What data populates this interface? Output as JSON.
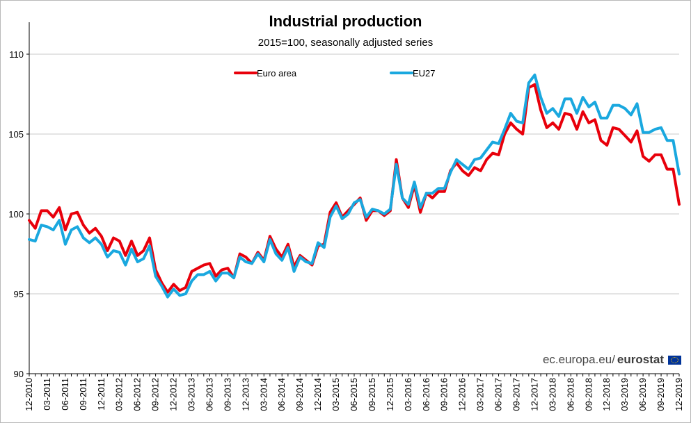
{
  "chart_data": {
    "type": "line",
    "title": "Industrial production",
    "subtitle": "2015=100, seasonally adjusted series",
    "xlabel": "",
    "ylabel": "",
    "ylim": [
      90,
      110
    ],
    "yticks": [
      "90",
      "95",
      "100",
      "105",
      "110"
    ],
    "grid": true,
    "legend_position": "top-center",
    "categories": [
      "12-2010",
      "01-2011",
      "02-2011",
      "03-2011",
      "04-2011",
      "05-2011",
      "06-2011",
      "07-2011",
      "08-2011",
      "09-2011",
      "10-2011",
      "11-2011",
      "12-2011",
      "01-2012",
      "02-2012",
      "03-2012",
      "04-2012",
      "05-2012",
      "06-2012",
      "07-2012",
      "08-2012",
      "09-2012",
      "10-2012",
      "11-2012",
      "12-2012",
      "01-2013",
      "02-2013",
      "03-2013",
      "04-2013",
      "05-2013",
      "06-2013",
      "07-2013",
      "08-2013",
      "09-2013",
      "10-2013",
      "11-2013",
      "12-2013",
      "01-2014",
      "02-2014",
      "03-2014",
      "04-2014",
      "05-2014",
      "06-2014",
      "07-2014",
      "08-2014",
      "09-2014",
      "10-2014",
      "11-2014",
      "12-2014",
      "01-2015",
      "02-2015",
      "03-2015",
      "04-2015",
      "05-2015",
      "06-2015",
      "07-2015",
      "08-2015",
      "09-2015",
      "10-2015",
      "11-2015",
      "12-2015",
      "01-2016",
      "02-2016",
      "03-2016",
      "04-2016",
      "05-2016",
      "06-2016",
      "07-2016",
      "08-2016",
      "09-2016",
      "10-2016",
      "11-2016",
      "12-2016",
      "01-2017",
      "02-2017",
      "03-2017",
      "04-2017",
      "05-2017",
      "06-2017",
      "07-2017",
      "08-2017",
      "09-2017",
      "10-2017",
      "11-2017",
      "12-2017",
      "01-2018",
      "02-2018",
      "03-2018",
      "04-2018",
      "05-2018",
      "06-2018",
      "07-2018",
      "08-2018",
      "09-2018",
      "10-2018",
      "11-2018",
      "12-2018",
      "01-2019",
      "02-2019",
      "03-2019",
      "04-2019",
      "05-2019",
      "06-2019",
      "07-2019",
      "08-2019",
      "09-2019",
      "10-2019",
      "11-2019",
      "12-2019"
    ],
    "xtick_labels": [
      "12-2010",
      "03-2011",
      "06-2011",
      "09-2011",
      "12-2011",
      "03-2012",
      "06-2012",
      "09-2012",
      "12-2012",
      "03-2013",
      "06-2013",
      "09-2013",
      "12-2013",
      "03-2014",
      "06-2014",
      "09-2014",
      "12-2014",
      "03-2015",
      "06-2015",
      "09-2015",
      "12-2015",
      "03-2016",
      "06-2016",
      "09-2016",
      "12-2016",
      "03-2017",
      "06-2017",
      "09-2017",
      "12-2017",
      "03-2018",
      "06-2018",
      "09-2018",
      "12-2018",
      "03-2019",
      "06-2019",
      "09-2019",
      "12-2019"
    ],
    "series": [
      {
        "name": "Euro area",
        "color": "#e8000b",
        "values": [
          99.6,
          99.1,
          100.2,
          100.2,
          99.8,
          100.4,
          99.0,
          100.0,
          100.1,
          99.3,
          98.8,
          99.1,
          98.6,
          97.7,
          98.5,
          98.3,
          97.4,
          98.3,
          97.4,
          97.7,
          98.5,
          96.5,
          95.7,
          95.1,
          95.6,
          95.2,
          95.4,
          96.4,
          96.6,
          96.8,
          96.9,
          96.1,
          96.5,
          96.6,
          96.0,
          97.5,
          97.3,
          96.9,
          97.6,
          97.1,
          98.6,
          97.8,
          97.3,
          98.1,
          96.7,
          97.4,
          97.1,
          96.8,
          98.0,
          98.1,
          100.1,
          100.7,
          99.8,
          100.2,
          100.6,
          101.0,
          99.6,
          100.2,
          100.2,
          99.9,
          100.2,
          103.4,
          101.0,
          100.4,
          101.8,
          100.1,
          101.3,
          101.0,
          101.4,
          101.4,
          102.7,
          103.2,
          102.7,
          102.4,
          102.9,
          102.7,
          103.4,
          103.8,
          103.7,
          105.0,
          105.7,
          105.3,
          105.0,
          107.9,
          108.1,
          106.5,
          105.4,
          105.7,
          105.3,
          106.3,
          106.2,
          105.3,
          106.4,
          105.7,
          105.9,
          104.6,
          104.3,
          105.4,
          105.3,
          104.9,
          104.5,
          105.2,
          103.6,
          103.3,
          103.7,
          103.7,
          102.8,
          102.8,
          100.6
        ]
      },
      {
        "name": "EU27",
        "color": "#1aa8df",
        "values": [
          98.4,
          98.3,
          99.3,
          99.2,
          99.0,
          99.6,
          98.1,
          99.0,
          99.2,
          98.5,
          98.2,
          98.5,
          98.1,
          97.3,
          97.7,
          97.6,
          96.8,
          97.8,
          97.0,
          97.2,
          98.0,
          96.1,
          95.5,
          94.8,
          95.3,
          94.9,
          95.0,
          95.8,
          96.2,
          96.2,
          96.4,
          95.8,
          96.3,
          96.3,
          96.0,
          97.3,
          97.0,
          96.9,
          97.5,
          97.0,
          98.4,
          97.5,
          97.1,
          97.9,
          96.4,
          97.3,
          97.0,
          96.9,
          98.2,
          97.9,
          99.8,
          100.5,
          99.7,
          100.0,
          100.7,
          100.9,
          99.8,
          100.3,
          100.2,
          100.0,
          100.3,
          103.1,
          101.0,
          100.6,
          102.0,
          100.4,
          101.3,
          101.3,
          101.6,
          101.6,
          102.6,
          103.4,
          103.1,
          102.8,
          103.4,
          103.5,
          104.0,
          104.5,
          104.4,
          105.3,
          106.3,
          105.8,
          105.7,
          108.2,
          108.7,
          107.3,
          106.3,
          106.6,
          106.1,
          107.2,
          107.2,
          106.3,
          107.3,
          106.7,
          107.0,
          106.0,
          106.0,
          106.8,
          106.8,
          106.6,
          106.2,
          106.9,
          105.1,
          105.1,
          105.3,
          105.4,
          104.6,
          104.6,
          102.5
        ]
      }
    ]
  },
  "source": {
    "prefix": "ec.europa.eu/",
    "brand": "eurostat",
    "flag_icon": "eu-flag-icon"
  }
}
